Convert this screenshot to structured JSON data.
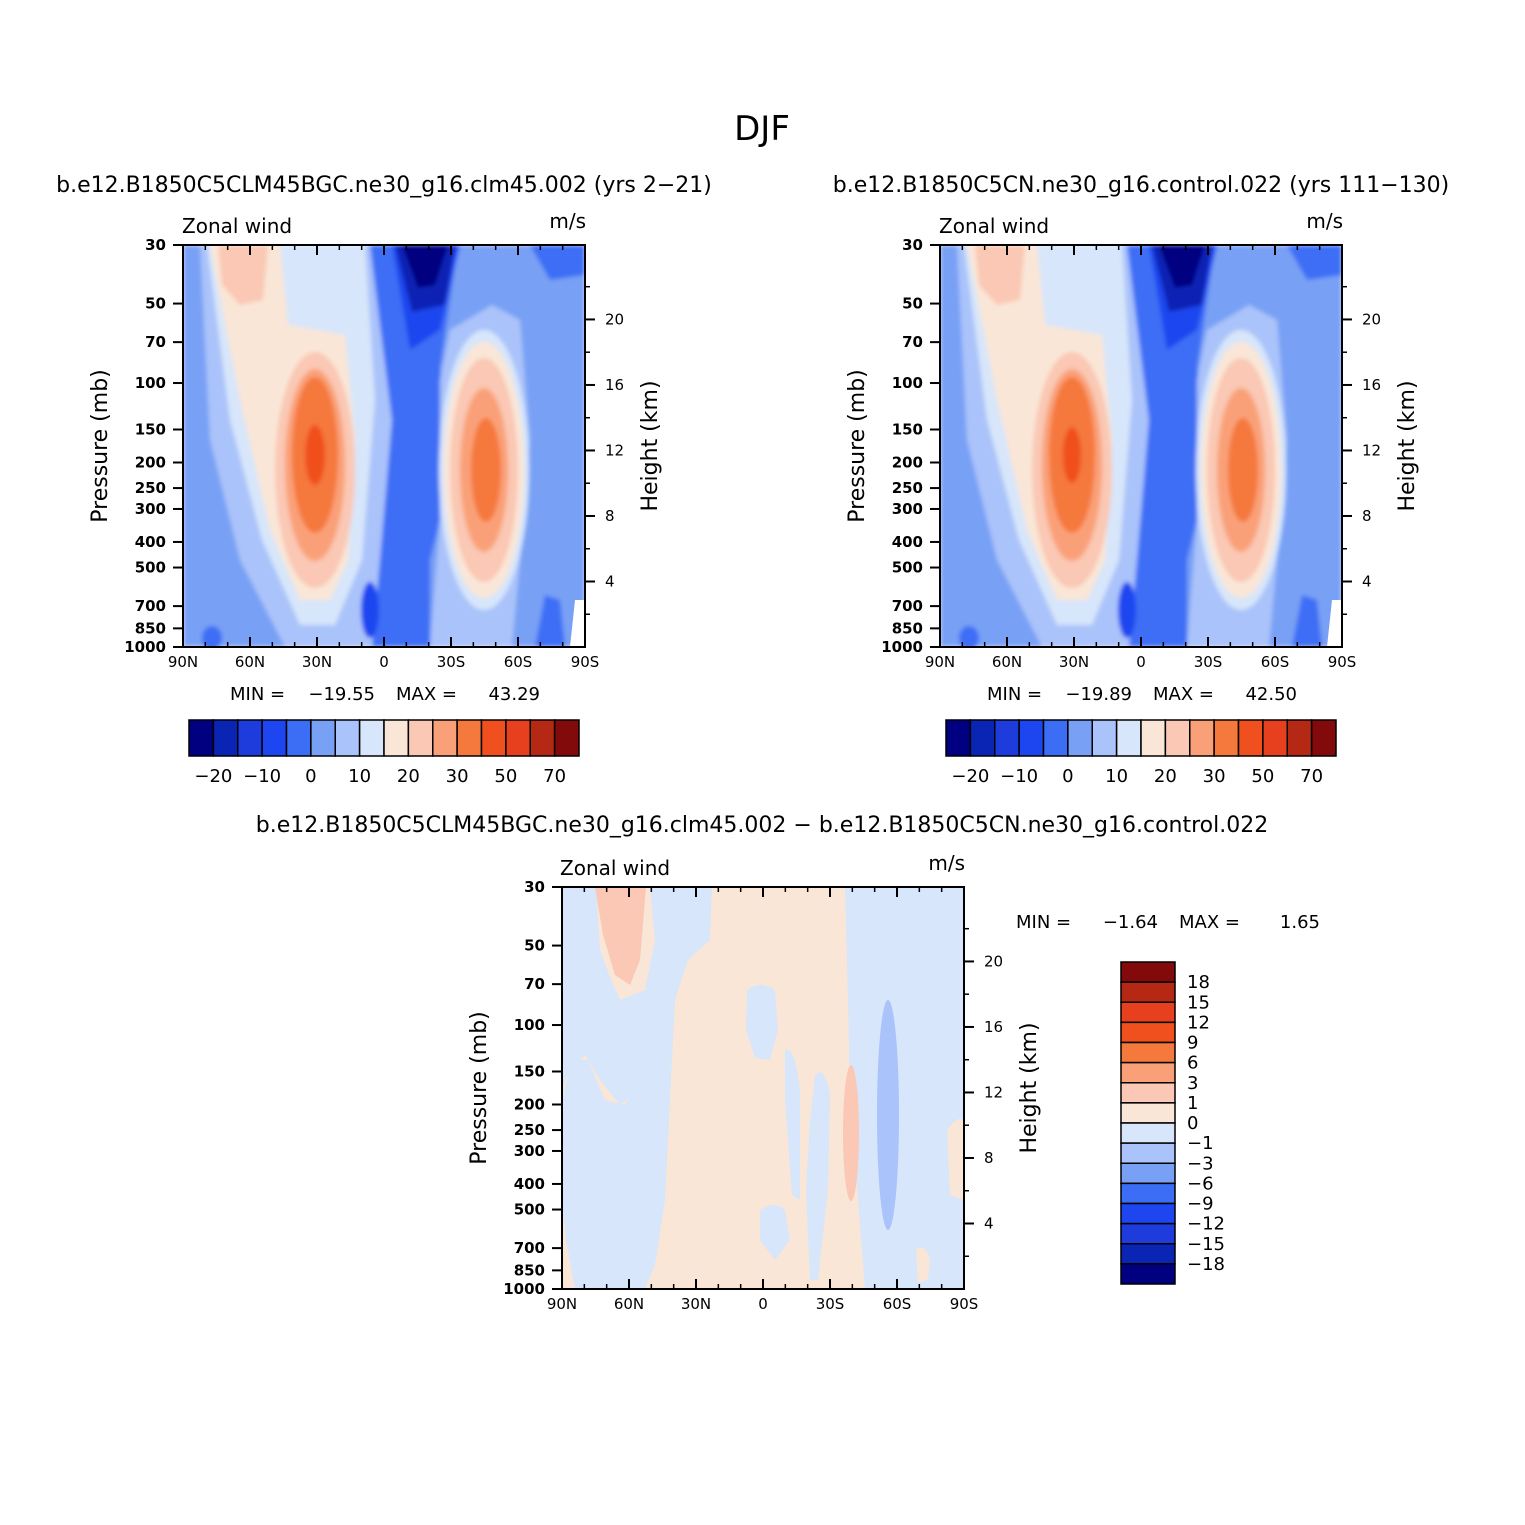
{
  "figure": {
    "title": "DJF"
  },
  "chart_data": [
    {
      "type": "heatmap",
      "id": "top-left",
      "title": "b.e12.B1850C5CLM45BGC.ne30_g16.clm45.002 (yrs 2−21)",
      "left_label": "Zonal wind",
      "right_label": "m/s",
      "ylabel": "Pressure (mb)",
      "ylabel_right": "Height (km)",
      "x_ticks": [
        "90N",
        "60N",
        "30N",
        "0",
        "30S",
        "60S",
        "90S"
      ],
      "y_ticks": [
        "30",
        "50",
        "70",
        "100",
        "150",
        "200",
        "250",
        "300",
        "400",
        "500",
        "700",
        "850",
        "1000"
      ],
      "height_ticks": [
        "20",
        "16",
        "12",
        "8",
        "4"
      ],
      "ylim": [
        1000,
        30
      ],
      "stats": {
        "min_label": "MIN =",
        "min_value": "−19.55",
        "max_label": "MAX =",
        "max_value": "43.29"
      },
      "colorbar_levels": [
        "−20",
        "−10",
        "0",
        "10",
        "20",
        "30",
        "50",
        "70"
      ],
      "colors": [
        "#000080",
        "#0a24b4",
        "#1e3cdc",
        "#1e46f0",
        "#3c6ef5",
        "#78a0f5",
        "#aac3fa",
        "#d7e6fa",
        "#fae6d7",
        "#fac8b4",
        "#faa078",
        "#f5783c",
        "#f0501e",
        "#e6401e",
        "#b42814",
        "#820a0a"
      ],
      "annotations": {
        "nh_jet_core": "~43 m/s near 30N at 200 mb",
        "sh_jet_core": "~35 m/s near 45S at 200 mb",
        "easterly_min": "~-20 m/s near 15S at 30 mb"
      }
    },
    {
      "type": "heatmap",
      "id": "top-right",
      "title": "b.e12.B1850C5CN.ne30_g16.control.022 (yrs 111−130)",
      "left_label": "Zonal wind",
      "right_label": "m/s",
      "ylabel": "Pressure (mb)",
      "ylabel_right": "Height (km)",
      "x_ticks": [
        "90N",
        "60N",
        "30N",
        "0",
        "30S",
        "60S",
        "90S"
      ],
      "y_ticks": [
        "30",
        "50",
        "70",
        "100",
        "150",
        "200",
        "250",
        "300",
        "400",
        "500",
        "700",
        "850",
        "1000"
      ],
      "height_ticks": [
        "20",
        "16",
        "12",
        "8",
        "4"
      ],
      "ylim": [
        1000,
        30
      ],
      "stats": {
        "min_label": "MIN =",
        "min_value": "−19.89",
        "max_label": "MAX =",
        "max_value": "42.50"
      },
      "colorbar_levels": [
        "−20",
        "−10",
        "0",
        "10",
        "20",
        "30",
        "50",
        "70"
      ],
      "colors": [
        "#000080",
        "#0a24b4",
        "#1e3cdc",
        "#1e46f0",
        "#3c6ef5",
        "#78a0f5",
        "#aac3fa",
        "#d7e6fa",
        "#fae6d7",
        "#fac8b4",
        "#faa078",
        "#f5783c",
        "#f0501e",
        "#e6401e",
        "#b42814",
        "#820a0a"
      ]
    },
    {
      "type": "heatmap",
      "id": "bottom-diff",
      "title": "b.e12.B1850C5CLM45BGC.ne30_g16.clm45.002 − b.e12.B1850C5CN.ne30_g16.control.022",
      "left_label": "Zonal wind",
      "right_label": "m/s",
      "ylabel": "Pressure (mb)",
      "ylabel_right": "Height (km)",
      "x_ticks": [
        "90N",
        "60N",
        "30N",
        "0",
        "30S",
        "60S",
        "90S"
      ],
      "y_ticks": [
        "30",
        "50",
        "70",
        "100",
        "150",
        "200",
        "250",
        "300",
        "400",
        "500",
        "700",
        "850",
        "1000"
      ],
      "height_ticks": [
        "20",
        "16",
        "12",
        "8",
        "4"
      ],
      "ylim": [
        1000,
        30
      ],
      "stats": {
        "min_label": "MIN =",
        "min_value": "−1.64",
        "max_label": "MAX =",
        "max_value": "1.65"
      },
      "colorbar_levels": [
        "18",
        "15",
        "12",
        "9",
        "6",
        "3",
        "1",
        "0",
        "−1",
        "−3",
        "−6",
        "−9",
        "−12",
        "−15",
        "−18"
      ],
      "colors": [
        "#820a0a",
        "#b42814",
        "#e6401e",
        "#f0501e",
        "#f5783c",
        "#faa078",
        "#fac8b4",
        "#fae6d7",
        "#d7e6fa",
        "#aac3fa",
        "#78a0f5",
        "#3c6ef5",
        "#1e46f0",
        "#1e3cdc",
        "#0a24b4",
        "#000080"
      ]
    }
  ]
}
